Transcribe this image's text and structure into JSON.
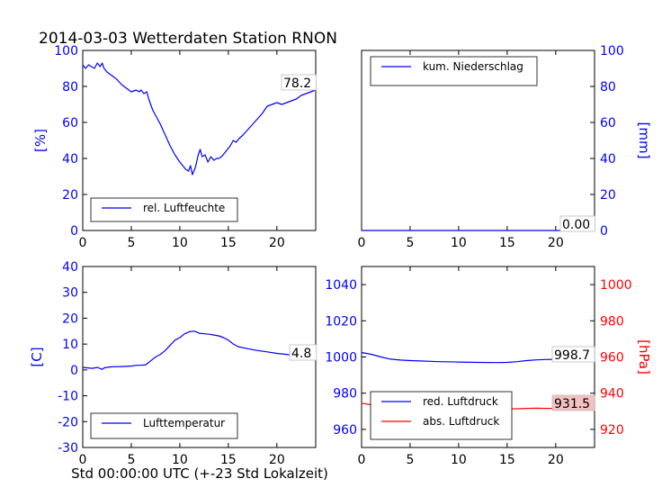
{
  "title": "2014-03-03 Wetterdaten Station RNON",
  "xlabel": "Std 00:00:00 UTC (+-23 Std Lokalzeit)",
  "chart_data": [
    {
      "type": "line",
      "panel": "humidity",
      "ylabel": "[%]",
      "xlim": [
        0,
        24
      ],
      "ylim": [
        0,
        100
      ],
      "xticks": [
        0,
        5,
        10,
        15,
        20
      ],
      "yticks": [
        0,
        20,
        40,
        60,
        80,
        100
      ],
      "axis_color": "#0000ff",
      "legend_position": "lower-left",
      "series": [
        {
          "name": "rel. Luftfeuchte",
          "color": "#0000ff",
          "x": [
            0,
            0.3,
            0.6,
            0.9,
            1.2,
            1.5,
            1.8,
            2.0,
            2.2,
            2.5,
            3.0,
            3.5,
            4.0,
            4.5,
            5.0,
            5.5,
            5.8,
            6.0,
            6.3,
            6.6,
            6.8,
            7.0,
            7.2,
            7.5,
            8.0,
            8.5,
            9.0,
            9.5,
            10.0,
            10.3,
            10.6,
            10.9,
            11.1,
            11.3,
            11.6,
            11.9,
            12.1,
            12.3,
            12.6,
            12.9,
            13.2,
            13.5,
            13.8,
            14.0,
            14.3,
            14.6,
            14.9,
            15.2,
            15.5,
            15.8,
            16.1,
            16.5,
            17.0,
            17.5,
            18.0,
            18.5,
            19.0,
            19.5,
            20.0,
            20.5,
            21.0,
            21.5,
            22.0,
            22.5,
            23.0,
            23.5,
            24.0
          ],
          "y": [
            92,
            90,
            92,
            91,
            90,
            93,
            91,
            93,
            90,
            88,
            86,
            84,
            81,
            79,
            77,
            78,
            77,
            78,
            76,
            77,
            73,
            70,
            67,
            64,
            59,
            53,
            47,
            42,
            38,
            36,
            34,
            33,
            36,
            31,
            35,
            42,
            45,
            41,
            42,
            38,
            41,
            39,
            40,
            40,
            41,
            43,
            45,
            47,
            50,
            49,
            51,
            53,
            56,
            59,
            62,
            65,
            69,
            70,
            71,
            70,
            71,
            72,
            73,
            75,
            76,
            77,
            78
          ]
        }
      ],
      "last_value_label": "78.2"
    },
    {
      "type": "line",
      "panel": "precipitation",
      "ylabel": "[mm]",
      "xlim": [
        0,
        24
      ],
      "ylim": [
        0,
        100
      ],
      "xticks": [
        0,
        5,
        10,
        15,
        20
      ],
      "yticks": [
        0,
        20,
        40,
        60,
        80,
        100
      ],
      "axis_color": "#0000ff",
      "legend_position": "upper-left",
      "series": [
        {
          "name": "kum. Niederschlag",
          "color": "#0000ff",
          "x": [
            0,
            24
          ],
          "y": [
            0,
            0
          ]
        }
      ],
      "last_value_label": "0.00"
    },
    {
      "type": "line",
      "panel": "temperature",
      "ylabel": "[C]",
      "xlim": [
        0,
        24
      ],
      "ylim": [
        -30,
        40
      ],
      "xticks": [
        0,
        5,
        10,
        15,
        20
      ],
      "yticks": [
        -30,
        -20,
        -10,
        0,
        10,
        20,
        30,
        40
      ],
      "axis_color": "#0000ff",
      "legend_position": "lower-left",
      "series": [
        {
          "name": "Lufttemperatur",
          "color": "#0000ff",
          "x": [
            0,
            0.5,
            1.0,
            1.5,
            2.0,
            2.2,
            2.5,
            3.0,
            4.0,
            5.0,
            5.5,
            6.0,
            6.5,
            7.0,
            7.5,
            8.0,
            8.5,
            9.0,
            9.5,
            10.0,
            10.5,
            11.0,
            11.5,
            12.0,
            12.5,
            13.0,
            13.5,
            14.0,
            14.5,
            15.0,
            15.5,
            16.0,
            17.0,
            18.0,
            19.0,
            20.0,
            21.0,
            22.0,
            23.0,
            24.0
          ],
          "y": [
            1.0,
            0.8,
            0.6,
            1.0,
            0.2,
            0.8,
            1.0,
            1.2,
            1.3,
            1.5,
            1.8,
            1.8,
            2.0,
            3.5,
            5.0,
            6.0,
            7.5,
            9.5,
            11.5,
            12.5,
            14.0,
            14.8,
            15.0,
            14.2,
            14.0,
            13.8,
            13.5,
            13.2,
            12.5,
            11.5,
            10.0,
            9.0,
            8.2,
            7.5,
            7.0,
            6.4,
            6.0,
            5.5,
            5.1,
            4.8
          ]
        }
      ],
      "last_value_label": "4.8"
    },
    {
      "type": "line",
      "panel": "pressure",
      "ylabel_right": "[hPa]",
      "xlim": [
        0,
        24
      ],
      "ylim_left": [
        950,
        1050
      ],
      "ylim_right": [
        910,
        1010
      ],
      "xticks": [
        0,
        5,
        10,
        15,
        20
      ],
      "yticks_left": [
        960,
        980,
        1000,
        1020,
        1040
      ],
      "yticks_right": [
        920,
        940,
        960,
        980,
        1000
      ],
      "left_axis_color": "#0000ff",
      "right_axis_color": "#ff0000",
      "legend_position": "lower-left",
      "series": [
        {
          "name": "red. Luftdruck",
          "color": "#0000ff",
          "axis": "left",
          "x": [
            0,
            1,
            2,
            3,
            4,
            5,
            6,
            8,
            10,
            12,
            14,
            15,
            16,
            17,
            18,
            19,
            20,
            21,
            22,
            23,
            24
          ],
          "y": [
            1002.5,
            1001.5,
            1000,
            998.8,
            998.3,
            998.0,
            997.8,
            997.4,
            997.2,
            997.0,
            996.9,
            997.0,
            997.4,
            998.0,
            998.4,
            998.6,
            998.7,
            998.8,
            998.7,
            998.7,
            998.7
          ]
        },
        {
          "name": "abs. Luftdruck",
          "color": "#ff0000",
          "axis": "right",
          "x": [
            0,
            1,
            2,
            3,
            4,
            5,
            6,
            8,
            10,
            12,
            14,
            15,
            16,
            17,
            18,
            19,
            20,
            21,
            22,
            23,
            24
          ],
          "y": [
            934.5,
            933.6,
            932.3,
            931.2,
            930.7,
            930.4,
            930.3,
            930.2,
            930.4,
            930.8,
            931.2,
            931.3,
            931.4,
            931.6,
            931.7,
            931.6,
            931.6,
            931.5,
            931.5,
            931.5,
            931.5
          ]
        }
      ],
      "last_value_labels": [
        "998.7",
        "931.5"
      ]
    }
  ]
}
